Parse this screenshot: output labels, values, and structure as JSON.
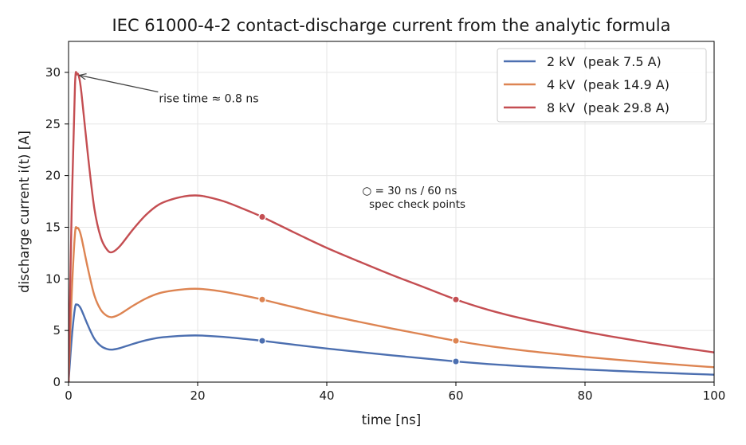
{
  "chart_data": {
    "type": "line",
    "title": "IEC 61000-4-2 contact-discharge current from the analytic formula",
    "xlabel": "time  [ns]",
    "ylabel": "discharge current  i(t)  [A]",
    "xlim": [
      0,
      100
    ],
    "ylim": [
      0,
      33
    ],
    "xticks": [
      0,
      20,
      40,
      60,
      80,
      100
    ],
    "yticks": [
      0,
      5,
      10,
      15,
      20,
      25,
      30
    ],
    "grid": true,
    "legend_position": "top-right",
    "x": [
      0,
      0.5,
      1,
      1.3,
      1.6,
      2,
      3,
      4,
      5,
      6,
      6.8,
      8,
      10,
      12,
      14,
      16,
      18,
      19.5,
      21,
      24,
      27,
      30,
      35,
      40,
      45,
      50,
      55,
      60,
      65,
      70,
      75,
      80,
      85,
      90,
      95,
      100
    ],
    "series": [
      {
        "name": "2 kV  (peak 7.5 A)",
        "color": "#4c6fb0",
        "values": [
          0,
          4.3,
          7.2,
          7.5,
          7.4,
          7.0,
          5.5,
          4.2,
          3.5,
          3.2,
          3.15,
          3.3,
          3.7,
          4.05,
          4.3,
          4.42,
          4.5,
          4.52,
          4.5,
          4.38,
          4.2,
          4.0,
          3.62,
          3.25,
          2.92,
          2.6,
          2.3,
          2.0,
          1.75,
          1.55,
          1.38,
          1.22,
          1.08,
          0.95,
          0.83,
          0.72
        ]
      },
      {
        "name": "4 kV  (peak 14.9 A)",
        "color": "#dd8452",
        "values": [
          0,
          8.6,
          14.4,
          14.9,
          14.8,
          14.0,
          11.0,
          8.4,
          7.0,
          6.4,
          6.3,
          6.6,
          7.4,
          8.1,
          8.6,
          8.85,
          9.0,
          9.04,
          9.0,
          8.76,
          8.4,
          8.0,
          7.24,
          6.5,
          5.84,
          5.2,
          4.6,
          4.0,
          3.5,
          3.1,
          2.76,
          2.44,
          2.16,
          1.9,
          1.66,
          1.44
        ]
      },
      {
        "name": "8 kV  (peak 29.8 A)",
        "color": "#c44e52",
        "values": [
          0,
          17.2,
          28.8,
          29.8,
          29.6,
          28.0,
          22.0,
          16.8,
          14.0,
          12.8,
          12.6,
          13.2,
          14.8,
          16.2,
          17.2,
          17.7,
          18.0,
          18.08,
          18.0,
          17.52,
          16.8,
          16.0,
          14.48,
          13.0,
          11.68,
          10.4,
          9.2,
          8.0,
          7.0,
          6.2,
          5.52,
          4.88,
          4.32,
          3.8,
          3.32,
          2.88
        ]
      }
    ],
    "check_points": {
      "x": [
        30,
        60
      ],
      "values": [
        [
          4.0,
          2.0
        ],
        [
          8.0,
          4.0
        ],
        [
          16.0,
          8.0
        ]
      ]
    },
    "annotations": {
      "rise": {
        "text": "rise time ≈ 0.8 ns",
        "point": [
          1.3,
          29.8
        ],
        "text_at": [
          14,
          27.1
        ]
      },
      "spec": {
        "line1": "○ = 30 ns / 60 ns",
        "line2": "  spec check points",
        "text_at": [
          45.5,
          18.2
        ]
      }
    }
  }
}
